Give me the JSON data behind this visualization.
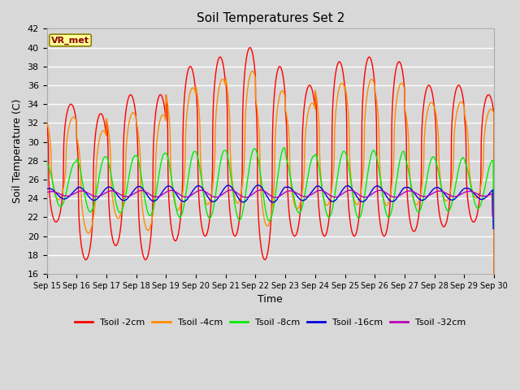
{
  "title": "Soil Temperatures Set 2",
  "xlabel": "Time",
  "ylabel": "Soil Temperature (C)",
  "ylim": [
    16,
    42
  ],
  "background_color": "#d8d8d8",
  "plot_bg_color": "#d8d8d8",
  "grid_color": "#ffffff",
  "annotation_text": "VR_met",
  "annotation_bg": "#ffff99",
  "annotation_border": "#8B8000",
  "series": {
    "Tsoil -2cm": {
      "color": "#ff0000",
      "lw": 1.0
    },
    "Tsoil -4cm": {
      "color": "#ff8c00",
      "lw": 1.0
    },
    "Tsoil -8cm": {
      "color": "#00ee00",
      "lw": 1.0
    },
    "Tsoil -16cm": {
      "color": "#0000dd",
      "lw": 1.0
    },
    "Tsoil -32cm": {
      "color": "#bb00bb",
      "lw": 1.0
    }
  },
  "xtick_labels": [
    "Sep 15",
    "Sep 16",
    "Sep 17",
    "Sep 18",
    "Sep 19",
    "Sep 20",
    "Sep 21",
    "Sep 22",
    "Sep 23",
    "Sep 24",
    "Sep 25",
    "Sep 26",
    "Sep 27",
    "Sep 28",
    "Sep 29",
    "Sep 30"
  ],
  "ytick_labels": [
    16,
    18,
    20,
    22,
    24,
    26,
    28,
    30,
    32,
    34,
    36,
    38,
    40,
    42
  ]
}
